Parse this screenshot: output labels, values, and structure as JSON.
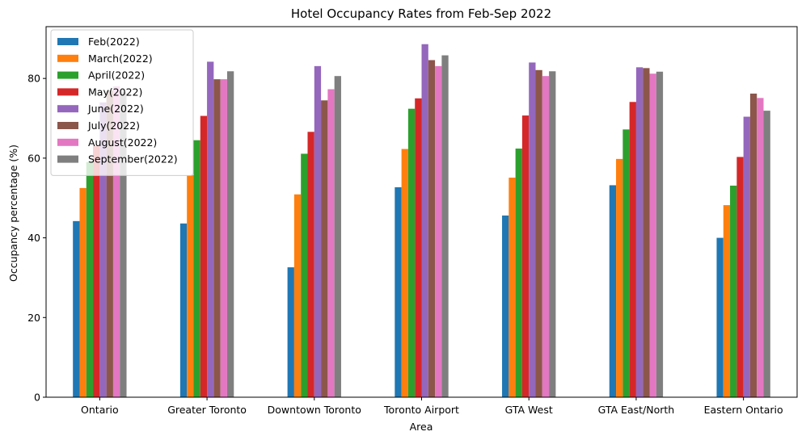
{
  "chart_data": {
    "type": "bar",
    "title": "Hotel Occupancy Rates from Feb-Sep 2022",
    "xlabel": "Area",
    "ylabel": "Occupancy percentage (%)",
    "ylim": [
      0,
      93
    ],
    "yticks": [
      0,
      20,
      40,
      60,
      80
    ],
    "grid": false,
    "legend_position": "top-left",
    "categories": [
      "Ontario",
      "Greater Toronto",
      "Downtown Toronto",
      "Toronto Airport",
      "GTA West",
      "GTA East/North",
      "Eastern Ontario"
    ],
    "series": [
      {
        "name": "Feb(2022)",
        "color": "#1f77b4",
        "values": [
          44.2,
          43.6,
          32.6,
          52.7,
          45.6,
          53.2,
          40.0
        ]
      },
      {
        "name": "March(2022)",
        "color": "#ff7f0e",
        "values": [
          52.5,
          55.7,
          50.9,
          62.3,
          55.1,
          59.8,
          48.2
        ]
      },
      {
        "name": "April(2022)",
        "color": "#2ca02c",
        "values": [
          59.0,
          64.5,
          61.1,
          72.4,
          62.4,
          67.2,
          53.1
        ]
      },
      {
        "name": "May(2022)",
        "color": "#d62728",
        "values": [
          63.0,
          70.6,
          66.6,
          75.0,
          70.7,
          74.1,
          60.3
        ]
      },
      {
        "name": "June(2022)",
        "color": "#9467bd",
        "values": [
          74.0,
          84.2,
          83.1,
          88.6,
          84.0,
          82.8,
          70.4
        ]
      },
      {
        "name": "July(2022)",
        "color": "#8c564b",
        "values": [
          77.0,
          79.8,
          74.5,
          84.6,
          82.1,
          82.6,
          76.2
        ]
      },
      {
        "name": "August(2022)",
        "color": "#e377c2",
        "values": [
          78.0,
          79.8,
          77.3,
          83.1,
          80.6,
          81.2,
          75.1
        ]
      },
      {
        "name": "September(2022)",
        "color": "#7f7f7f",
        "values": [
          76.5,
          81.8,
          80.6,
          85.8,
          81.8,
          81.7,
          71.9
        ]
      }
    ]
  }
}
